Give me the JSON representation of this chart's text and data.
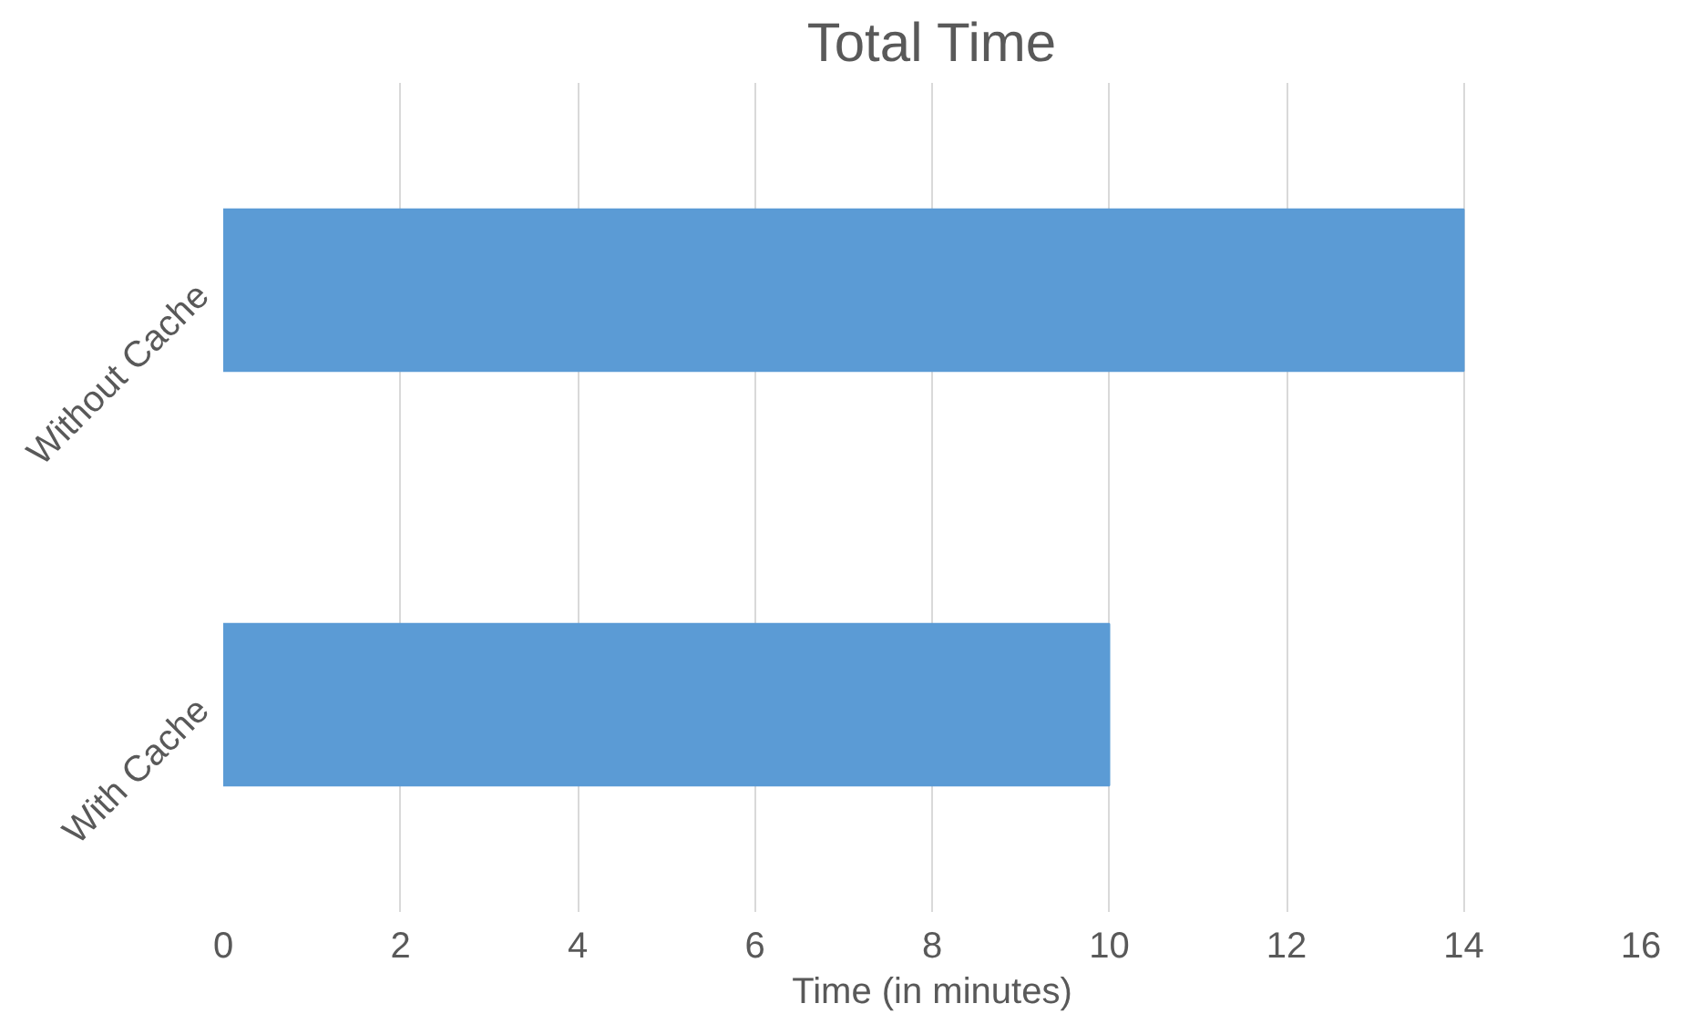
{
  "chart_data": {
    "type": "bar",
    "orientation": "horizontal",
    "title": "Total Time",
    "xlabel": "Time (in minutes)",
    "categories": [
      "Without Cache",
      "With Cache"
    ],
    "values": [
      14,
      10
    ],
    "color": "#5b9bd5",
    "xlim": [
      0,
      16
    ],
    "xticks": [
      0,
      2,
      4,
      6,
      8,
      10,
      12,
      14,
      16
    ],
    "grid": "x"
  }
}
